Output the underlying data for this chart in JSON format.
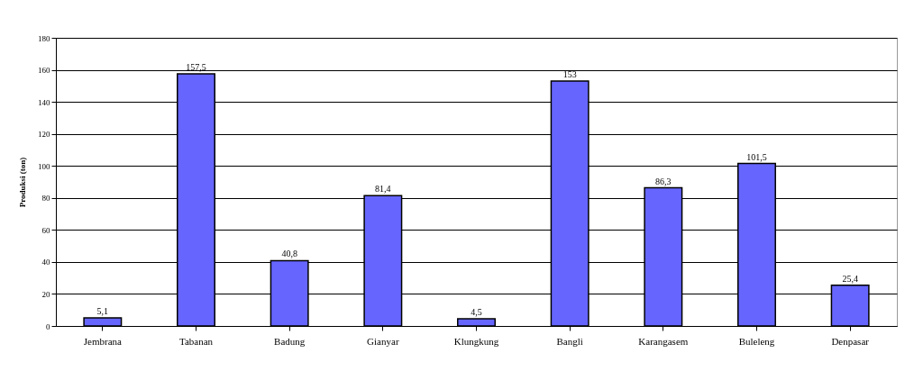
{
  "chart_data": {
    "type": "bar",
    "ylabel": "Produksi (ton)",
    "categories": [
      "Jembrana",
      "Tabanan",
      "Badung",
      "Gianyar",
      "Klungkung",
      "Bangli",
      "Karangasem",
      "Buleleng",
      "Denpasar"
    ],
    "values": [
      5.1,
      157.5,
      40.8,
      81.4,
      4.5,
      153,
      86.3,
      101.5,
      25.4
    ],
    "value_labels": [
      "5,1",
      "157,5",
      "40,8",
      "81,4",
      "4,5",
      "153",
      "86,3",
      "101,5",
      "25,4"
    ],
    "color": "#6666ff",
    "ylim": [
      0,
      180
    ],
    "yticks": [
      0,
      20,
      40,
      60,
      80,
      100,
      120,
      140,
      160,
      180
    ],
    "grid": "y"
  }
}
